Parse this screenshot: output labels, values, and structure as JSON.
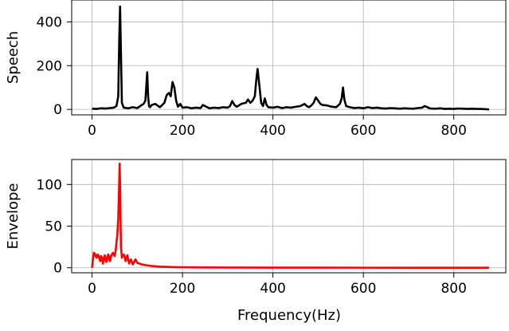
{
  "chart_data": [
    {
      "type": "line",
      "title": "",
      "xlabel": "",
      "ylabel": "Speech",
      "xlim": [
        -45,
        915
      ],
      "ylim": [
        -25,
        500
      ],
      "xticks": [
        0,
        200,
        400,
        600,
        800
      ],
      "xtick_labels": [
        "0",
        "200",
        "400",
        "600",
        "800"
      ],
      "yticks": [
        0,
        200,
        400
      ],
      "ytick_labels": [
        "0",
        "200",
        "400"
      ],
      "grid": true,
      "color": "#000000",
      "series": [
        {
          "x": [
            0,
            10,
            20,
            30,
            40,
            48,
            54,
            58,
            60,
            62,
            64,
            66,
            70,
            80,
            90,
            100,
            110,
            114,
            118,
            122,
            124,
            126,
            128,
            132,
            140,
            150,
            160,
            165,
            170,
            174,
            178,
            182,
            186,
            190,
            195,
            200,
            210,
            220,
            230,
            240,
            245,
            250,
            260,
            270,
            280,
            290,
            300,
            305,
            310,
            315,
            320,
            330,
            340,
            345,
            350,
            355,
            360,
            363,
            366,
            370,
            374,
            378,
            382,
            386,
            390,
            400,
            410,
            420,
            430,
            440,
            450,
            460,
            465,
            470,
            475,
            480,
            485,
            490,
            495,
            500,
            505,
            510,
            520,
            530,
            540,
            548,
            552,
            555,
            558,
            562,
            570,
            580,
            590,
            600,
            610,
            620,
            630,
            640,
            650,
            660,
            670,
            680,
            690,
            700,
            710,
            720,
            730,
            735,
            740,
            745,
            750,
            760,
            770,
            780,
            790,
            800,
            810,
            820,
            830,
            840,
            850,
            860,
            870,
            878
          ],
          "y": [
            3,
            2,
            5,
            4,
            6,
            8,
            15,
            60,
            300,
            470,
            250,
            30,
            8,
            5,
            10,
            6,
            20,
            25,
            40,
            170,
            60,
            15,
            10,
            20,
            25,
            10,
            30,
            65,
            75,
            60,
            125,
            100,
            40,
            12,
            25,
            8,
            10,
            5,
            8,
            6,
            20,
            15,
            5,
            8,
            6,
            10,
            8,
            15,
            38,
            20,
            12,
            25,
            30,
            45,
            30,
            40,
            60,
            130,
            185,
            110,
            30,
            15,
            50,
            20,
            10,
            8,
            12,
            6,
            10,
            8,
            12,
            15,
            20,
            25,
            15,
            10,
            18,
            30,
            55,
            40,
            25,
            20,
            18,
            12,
            10,
            25,
            50,
            100,
            45,
            15,
            10,
            6,
            8,
            5,
            10,
            6,
            8,
            5,
            4,
            6,
            5,
            3,
            5,
            4,
            3,
            6,
            8,
            15,
            12,
            6,
            4,
            3,
            5,
            2,
            3,
            2,
            4,
            3,
            2,
            3,
            2,
            2,
            1,
            0
          ]
        }
      ]
    },
    {
      "type": "line",
      "title": "",
      "xlabel": "Frequency(Hz)",
      "ylabel": "Envelope",
      "xlim": [
        -45,
        915
      ],
      "ylim": [
        -6,
        130
      ],
      "xticks": [
        0,
        200,
        400,
        600,
        800
      ],
      "xtick_labels": [
        "0",
        "200",
        "400",
        "600",
        "800"
      ],
      "yticks": [
        0,
        50,
        100
      ],
      "ytick_labels": [
        "0",
        "50",
        "100"
      ],
      "grid": true,
      "color": "#ff0000",
      "series": [
        {
          "x": [
            0,
            2,
            4,
            6,
            8,
            10,
            12,
            14,
            16,
            18,
            20,
            22,
            24,
            26,
            28,
            30,
            32,
            34,
            36,
            38,
            40,
            42,
            44,
            46,
            48,
            50,
            52,
            54,
            56,
            58,
            60,
            61,
            62,
            63,
            64,
            66,
            68,
            70,
            72,
            74,
            76,
            78,
            80,
            82,
            84,
            86,
            88,
            90,
            92,
            94,
            96,
            98,
            100,
            105,
            110,
            115,
            120,
            125,
            130,
            140,
            150,
            160,
            170,
            180,
            200,
            250,
            300,
            400,
            500,
            600,
            700,
            800,
            878
          ],
          "y": [
            0,
            10,
            18,
            17,
            14,
            12,
            16,
            15,
            11,
            8,
            14,
            12,
            5,
            11,
            15,
            9,
            7,
            13,
            16,
            10,
            8,
            14,
            16,
            18,
            16,
            14,
            20,
            30,
            40,
            60,
            100,
            125,
            100,
            60,
            25,
            12,
            15,
            16,
            13,
            8,
            12,
            15,
            10,
            5,
            8,
            10,
            7,
            4,
            6,
            8,
            10,
            8,
            6,
            5,
            4,
            3.5,
            3,
            2.6,
            2.2,
            1.8,
            1.4,
            1.2,
            1.0,
            0.8,
            0.6,
            0.4,
            0.3,
            0.2,
            0.15,
            0.1,
            0.08,
            0.05,
            0.04
          ]
        }
      ]
    }
  ]
}
